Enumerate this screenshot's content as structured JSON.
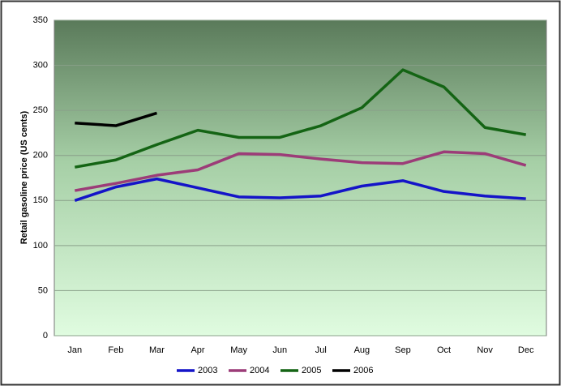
{
  "chart_data": {
    "type": "line",
    "y_label": "Retail gasoline price (US cents)",
    "categories": [
      "Jan",
      "Feb",
      "Mar",
      "Apr",
      "May",
      "Jun",
      "Jul",
      "Aug",
      "Sep",
      "Oct",
      "Nov",
      "Dec"
    ],
    "series": [
      {
        "name": "2003",
        "color": "#1414c8",
        "values": [
          150,
          165,
          174,
          164,
          154,
          153,
          155,
          166,
          172,
          160,
          155,
          152
        ]
      },
      {
        "name": "2004",
        "color": "#9c3c78",
        "values": [
          161,
          169,
          178,
          184,
          202,
          201,
          196,
          192,
          191,
          204,
          202,
          189
        ]
      },
      {
        "name": "2005",
        "color": "#146414",
        "values": [
          187,
          195,
          212,
          228,
          220,
          220,
          233,
          253,
          295,
          276,
          231,
          223
        ]
      },
      {
        "name": "2006",
        "color": "#000000",
        "values": [
          236,
          233,
          247,
          null,
          null,
          null,
          null,
          null,
          null,
          null,
          null,
          null
        ]
      }
    ],
    "ylim": [
      0,
      350
    ],
    "yticks": [
      0,
      50,
      100,
      150,
      200,
      250,
      300,
      350
    ],
    "grid": true,
    "legend": "bottom"
  }
}
